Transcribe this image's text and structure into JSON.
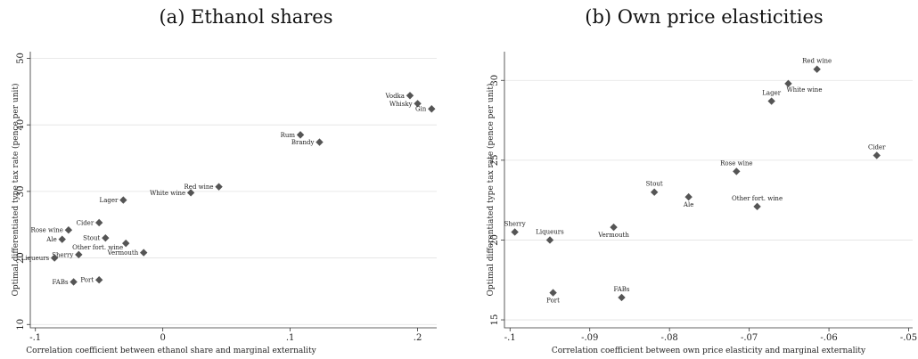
{
  "colors": {
    "marker": "#555555",
    "grid": "#e2e2e2",
    "axis": "#333333"
  },
  "chart_data": [
    {
      "type": "scatter",
      "title": "(a) Ethanol shares",
      "xlabel": "Correlation coefficient between ethanol share and marginal externality",
      "ylabel": "Optimal differentiated type tax rate (pence per unit)",
      "xlim": [
        -0.104,
        0.215
      ],
      "ylim": [
        9.5,
        51
      ],
      "xticks": [
        -0.1,
        0,
        0.1,
        0.2
      ],
      "xtick_labels": [
        "-.1",
        "0",
        ".1",
        ".2"
      ],
      "yticks": [
        10,
        20,
        30,
        40,
        50
      ],
      "ytick_labels": [
        "10",
        "20",
        "30",
        "40",
        "50"
      ],
      "grid": "horizontal",
      "points": [
        {
          "label": "Vodka",
          "x": 0.194,
          "y": 44.4,
          "label_pos": "left"
        },
        {
          "label": "Whisky",
          "x": 0.2,
          "y": 43.2,
          "label_pos": "left"
        },
        {
          "label": "Gin",
          "x": 0.211,
          "y": 42.4,
          "label_pos": "left"
        },
        {
          "label": "Rum",
          "x": 0.108,
          "y": 38.5,
          "label_pos": "left"
        },
        {
          "label": "Brandy",
          "x": 0.123,
          "y": 37.4,
          "label_pos": "left"
        },
        {
          "label": "Red wine",
          "x": 0.044,
          "y": 30.7,
          "label_pos": "left"
        },
        {
          "label": "White wine",
          "x": 0.022,
          "y": 29.8,
          "label_pos": "left"
        },
        {
          "label": "Lager",
          "x": -0.031,
          "y": 28.7,
          "label_pos": "left"
        },
        {
          "label": "Cider",
          "x": -0.05,
          "y": 25.3,
          "label_pos": "left"
        },
        {
          "label": "Rose wine",
          "x": -0.074,
          "y": 24.2,
          "label_pos": "left"
        },
        {
          "label": "Stout",
          "x": -0.045,
          "y": 23.0,
          "label_pos": "left"
        },
        {
          "label": "Ale",
          "x": -0.079,
          "y": 22.8,
          "label_pos": "left"
        },
        {
          "label": "Other fort. wine",
          "x": -0.029,
          "y": 22.2,
          "label_pos": "below-left"
        },
        {
          "label": "Vermouth",
          "x": -0.015,
          "y": 20.8,
          "label_pos": "left"
        },
        {
          "label": "Sherry",
          "x": -0.066,
          "y": 20.5,
          "label_pos": "left"
        },
        {
          "label": "Liqueurs",
          "x": -0.085,
          "y": 20.0,
          "label_pos": "left"
        },
        {
          "label": "Port",
          "x": -0.05,
          "y": 16.7,
          "label_pos": "left"
        },
        {
          "label": "FABs",
          "x": -0.07,
          "y": 16.4,
          "label_pos": "left"
        }
      ]
    },
    {
      "type": "scatter",
      "title": "(b) Own price elasticities",
      "xlabel": "Correlation coefficient between own price elasticity and marginal externality",
      "ylabel": "Optimal differentiated type tax rate (pence per unit)",
      "xlim": [
        -0.1007,
        -0.0495
      ],
      "ylim": [
        14.5,
        31.8
      ],
      "xticks": [
        -0.1,
        -0.09,
        -0.08,
        -0.07,
        -0.06,
        -0.05
      ],
      "xtick_labels": [
        "-.1",
        "-.09",
        "-.08",
        "-.07",
        "-.06",
        "-.05"
      ],
      "yticks": [
        15,
        20,
        25,
        30
      ],
      "ytick_labels": [
        "15",
        "20",
        "25",
        "30"
      ],
      "grid": "horizontal",
      "points": [
        {
          "label": "Red wine",
          "x": -0.0615,
          "y": 30.7,
          "label_pos": "above"
        },
        {
          "label": "White wine",
          "x": -0.0651,
          "y": 29.8,
          "label_pos": "below-right"
        },
        {
          "label": "Lager",
          "x": -0.0672,
          "y": 28.7,
          "label_pos": "above"
        },
        {
          "label": "Cider",
          "x": -0.054,
          "y": 25.3,
          "label_pos": "above"
        },
        {
          "label": "Rose wine",
          "x": -0.0716,
          "y": 24.3,
          "label_pos": "above"
        },
        {
          "label": "Stout",
          "x": -0.0819,
          "y": 23.0,
          "label_pos": "above"
        },
        {
          "label": "Ale",
          "x": -0.0776,
          "y": 22.7,
          "label_pos": "below"
        },
        {
          "label": "Other fort. wine",
          "x": -0.069,
          "y": 22.1,
          "label_pos": "above"
        },
        {
          "label": "Vermouth",
          "x": -0.087,
          "y": 20.8,
          "label_pos": "below"
        },
        {
          "label": "Sherry",
          "x": -0.0994,
          "y": 20.5,
          "label_pos": "above"
        },
        {
          "label": "Liqueurs",
          "x": -0.095,
          "y": 20.0,
          "label_pos": "above"
        },
        {
          "label": "Port",
          "x": -0.0946,
          "y": 16.7,
          "label_pos": "below"
        },
        {
          "label": "FABs",
          "x": -0.086,
          "y": 16.4,
          "label_pos": "above"
        }
      ]
    }
  ]
}
